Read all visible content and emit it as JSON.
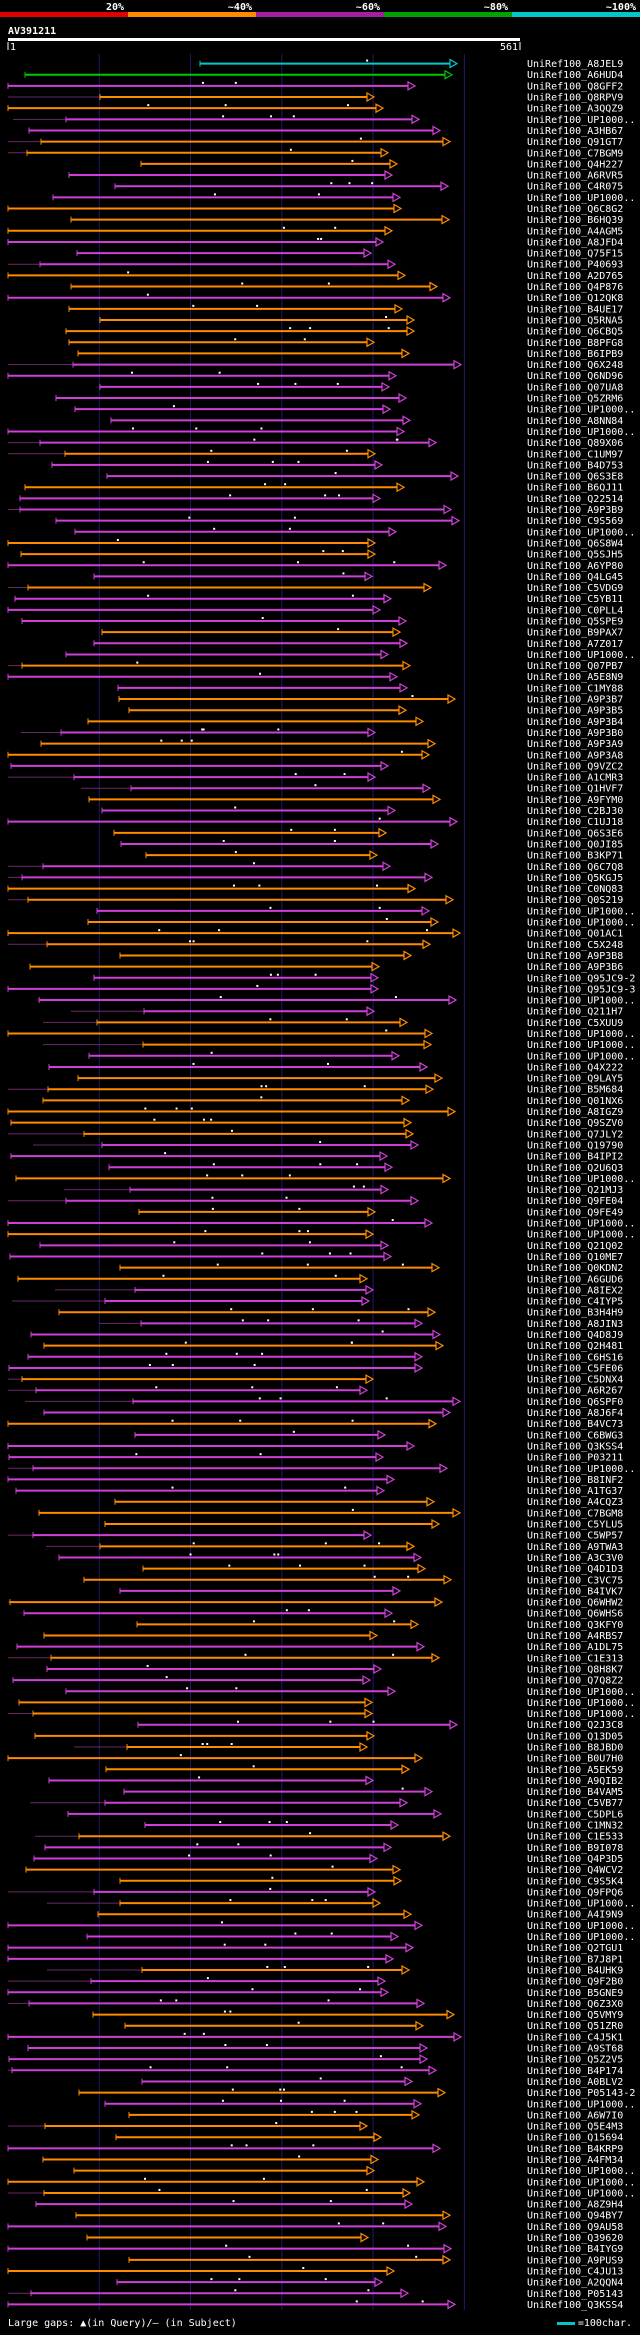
{
  "query_id": "AV391211",
  "scale": {
    "start": "1",
    "end": "561"
  },
  "identity_legend": [
    {
      "label": "20%",
      "color": "#e00000"
    },
    {
      "label": "~40%",
      "color": "#ff8c00"
    },
    {
      "label": "~60%",
      "color": "#a020a0"
    },
    {
      "label": "~80%",
      "color": "#00a000"
    },
    {
      "label": "~100%",
      "color": "#00c8c8"
    }
  ],
  "footer": {
    "gaps": "Large gaps: ▲(in Query)/— (in Subject)",
    "scale": "=100char."
  },
  "hit_labels": [
    "UniRef100_A8JEL9",
    "UniRef100_A6HUD4",
    "UniRef100_Q8GFF2",
    "UniRef100_Q8RPV9",
    "UniRef100_A3QQZ9",
    "UniRef100_UP1000..",
    "UniRef100_A3HB67",
    "UniRef100_Q91GT7",
    "UniRef100_C7BGM9",
    "UniRef100_Q4H227",
    "UniRef100_A6RVR5",
    "UniRef100_C4R075",
    "UniRef100_UP1000..",
    "UniRef100_Q6C8G2",
    "UniRef100_B6HQ39",
    "UniRef100_A4AGM5",
    "UniRef100_A8JFD4",
    "UniRef100_Q75F15",
    "UniRef100_P40693",
    "UniRef100_A2D765",
    "UniRef100_Q4P876",
    "UniRef100_Q12QK8",
    "UniRef100_B4UE17",
    "UniRef100_Q5RNA5",
    "UniRef100_Q6CBQ5",
    "UniRef100_B8PFG8",
    "UniRef100_B6IPB9",
    "UniRef100_Q6X248",
    "UniRef100_Q6ND96",
    "UniRef100_Q07UA8",
    "UniRef100_Q5ZRM6",
    "UniRef100_UP1000..",
    "UniRef100_A8NN84",
    "UniRef100_UP1000..",
    "UniRef100_Q89X06",
    "UniRef100_C1UM97",
    "UniRef100_B4D753",
    "UniRef100_Q6S3E8",
    "UniRef100_B6QJ11",
    "UniRef100_Q22514",
    "UniRef100_A9P3B9",
    "UniRef100_C9S569",
    "UniRef100_UP1000..",
    "UniRef100_Q6S8W4",
    "UniRef100_Q5SJH5",
    "UniRef100_A6YP80",
    "UniRef100_Q4LG45",
    "UniRef100_C5VDG9",
    "UniRef100_C5YB11",
    "UniRef100_C0PLL4",
    "UniRef100_Q5SPE9",
    "UniRef100_B9PAX7",
    "UniRef100_A7Z017",
    "UniRef100_UP1000..",
    "UniRef100_Q07PB7",
    "UniRef100_A5E8N9",
    "UniRef100_C1MY88",
    "UniRef100_A9P3B7",
    "UniRef100_A9P3B5",
    "UniRef100_A9P3B4",
    "UniRef100_A9P3B0",
    "UniRef100_A9P3A9",
    "UniRef100_A9P3A8",
    "UniRef100_Q9VZC2",
    "UniRef100_A1CMR3",
    "UniRef100_Q1HVF7",
    "UniRef100_A9FYM0",
    "UniRef100_C2BJ30",
    "UniRef100_C1UJ18",
    "UniRef100_Q6S3E6",
    "UniRef100_Q0JI85",
    "UniRef100_B3KP71",
    "UniRef100_Q6C7Q8",
    "UniRef100_Q5KGJ5",
    "UniRef100_C0NQ83",
    "UniRef100_Q0S219",
    "UniRef100_UP1000..",
    "UniRef100_UP1000..",
    "UniRef100_Q01AC1",
    "UniRef100_C5X248",
    "UniRef100_A9P3B8",
    "UniRef100_A9P3B6",
    "UniRef100_Q95JC9-2",
    "UniRef100_Q95JC9-3",
    "UniRef100_UP1000..",
    "UniRef100_Q211H7",
    "UniRef100_C5XUU9",
    "UniRef100_UP1000..",
    "UniRef100_UP1000..",
    "UniRef100_UP1000..",
    "UniRef100_Q4X222",
    "UniRef100_Q9LAY5",
    "UniRef100_B5M684",
    "UniRef100_Q01NX6",
    "UniRef100_A8IGZ9",
    "UniRef100_Q9SZV0",
    "UniRef100_Q7JLY2",
    "UniRef100_Q19790",
    "UniRef100_B4IPI2",
    "UniRef100_Q2U6Q3",
    "UniRef100_UP1000..",
    "UniRef100_Q21MJ3",
    "UniRef100_Q9FE04",
    "UniRef100_Q9FE49",
    "UniRef100_UP1000..",
    "UniRef100_UP1000..",
    "UniRef100_Q21Q02",
    "UniRef100_Q10ME7",
    "UniRef100_Q0KDN2",
    "UniRef100_A6GUD6",
    "UniRef100_A8IEX2",
    "UniRef100_C4IYP5",
    "UniRef100_B3H4H9",
    "UniRef100_A8JIN3",
    "UniRef100_Q4D8J9",
    "UniRef100_Q2H481",
    "UniRef100_C6HS16",
    "UniRef100_C5FE06",
    "UniRef100_C5DNX4",
    "UniRef100_A6R267",
    "UniRef100_Q6SPF0",
    "UniRef100_A8J6F4",
    "UniRef100_B4VC73",
    "UniRef100_C6BWG3",
    "UniRef100_Q3KSS4",
    "UniRef100_P03211",
    "UniRef100_UP1000..",
    "UniRef100_B8INF2",
    "UniRef100_A1TG37",
    "UniRef100_A4CQZ3",
    "UniRef100_C7BGM8",
    "UniRef100_C5YLU5",
    "UniRef100_C5WP57",
    "UniRef100_A9TWA3",
    "UniRef100_A3C3V0",
    "UniRef100_Q4D1D3",
    "UniRef100_C3VC75",
    "UniRef100_B4IVK7",
    "UniRef100_Q6WHW2",
    "UniRef100_Q6WHS6",
    "UniRef100_Q3KFY0",
    "UniRef100_A4RBS7",
    "UniRef100_A1DL75",
    "UniRef100_C1E313",
    "UniRef100_Q8H8K7",
    "UniRef100_Q7Q8Z2",
    "UniRef100_UP1000..",
    "UniRef100_UP1000..",
    "UniRef100_UP1000..",
    "UniRef100_Q2J3C8",
    "UniRef100_Q13D05",
    "UniRef100_B8JBD0",
    "UniRef100_B0U7H0",
    "UniRef100_A5EK59",
    "UniRef100_A9QIB2",
    "UniRef100_B4VAM5",
    "UniRef100_C5VB77",
    "UniRef100_C5DPL6",
    "UniRef100_C1MN32",
    "UniRef100_C1E533",
    "UniRef100_B9I078",
    "UniRef100_Q4P3D5",
    "UniRef100_Q4WCV2",
    "UniRef100_C9S5K4",
    "UniRef100_Q9FPQ6",
    "UniRef100_UP1000..",
    "UniRef100_A4I9N9",
    "UniRef100_UP1000..",
    "UniRef100_UP1000..",
    "UniRef100_Q2TGU1",
    "UniRef100_B7J8P1",
    "UniRef100_B4UHK9",
    "UniRef100_Q9F2B0",
    "UniRef100_B5GNE9",
    "UniRef100_Q6Z3X0",
    "UniRef100_Q5VMY9",
    "UniRef100_Q51ZR0",
    "UniRef100_C4J5K1",
    "UniRef100_A9ST68",
    "UniRef100_Q5Z2V5",
    "UniRef100_B4P174",
    "UniRef100_A0BLV2",
    "UniRef100_P05143-2",
    "UniRef100_UP1000..",
    "UniRef100_A6W7I0",
    "UniRef100_Q5E4M3",
    "UniRef100_Q15694",
    "UniRef100_B4KRP9",
    "UniRef100_A4FM34",
    "UniRef100_UP1000..",
    "UniRef100_UP1000..",
    "UniRef100_UP1000..",
    "UniRef100_A8Z9H4",
    "UniRef100_Q94BY7",
    "UniRef100_Q9AU58",
    "UniRef100_Q39620",
    "UniRef100_B4IYG9",
    "UniRef100_A9PUS9",
    "UniRef100_C4JU13",
    "UniRef100_A2QQN4",
    "UniRef100_P05143",
    "UniRef100_Q3KSS4"
  ]
}
